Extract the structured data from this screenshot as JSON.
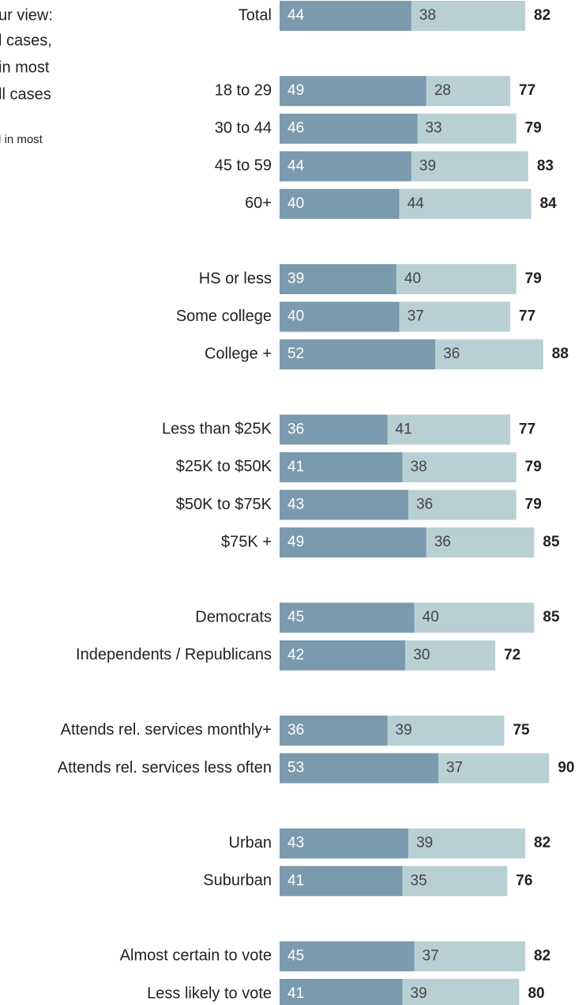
{
  "chart_data": {
    "type": "stacked-bar-horizontal",
    "annotations": [
      "ur view:",
      "l cases,",
      "in most",
      "ll cases",
      "l in most"
    ],
    "categories": [
      "Total",
      null,
      "18 to 29",
      "30 to 44",
      "45 to 59",
      "60+",
      null,
      "HS or less",
      "Some college",
      "College +",
      null,
      "Less than $25K",
      "$25K to $50K",
      "$50K to $75K",
      "$75K +",
      null,
      "Democrats",
      "Independents / Republicans",
      null,
      "Attends rel. services monthly+",
      "Attends rel. services less often",
      null,
      "Urban",
      "Suburban",
      null,
      "Almost certain to vote",
      "Less likely to vote"
    ],
    "series": [
      {
        "color": "#7b9aae",
        "label_color": "#ffffff",
        "values": [
          44,
          null,
          49,
          46,
          44,
          40,
          null,
          39,
          40,
          52,
          null,
          36,
          41,
          43,
          49,
          null,
          45,
          42,
          null,
          36,
          53,
          null,
          43,
          41,
          null,
          45,
          41
        ]
      },
      {
        "color": "#b8d0d3",
        "label_color": "#444444",
        "values": [
          38,
          null,
          28,
          33,
          39,
          44,
          null,
          40,
          37,
          36,
          null,
          41,
          38,
          36,
          36,
          null,
          40,
          30,
          null,
          39,
          37,
          null,
          39,
          35,
          null,
          37,
          39
        ]
      }
    ],
    "totals": [
      82,
      null,
      77,
      79,
      83,
      84,
      null,
      79,
      77,
      88,
      null,
      77,
      79,
      79,
      85,
      null,
      85,
      72,
      null,
      75,
      90,
      null,
      82,
      76,
      null,
      82,
      80
    ],
    "xlim": [
      0,
      100
    ]
  }
}
